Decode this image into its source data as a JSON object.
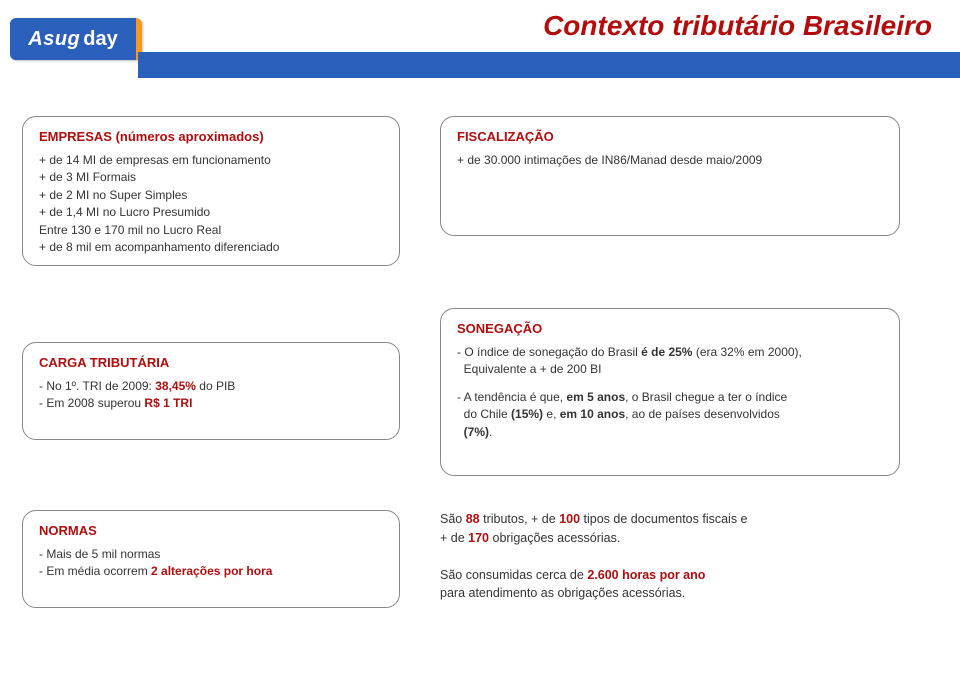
{
  "colors": {
    "brand_blue": "#2a5fbc",
    "brand_orange": "#f29a24",
    "title_red": "#b30c0c",
    "accent_red": "#b30c0c",
    "border_gray": "#888888",
    "text_black": "#333333",
    "bg_white": "#ffffff"
  },
  "logo": {
    "part1": "Asug",
    "part2": "day"
  },
  "page_title": "Contexto tributário Brasileiro",
  "cards": {
    "empresas": {
      "title": "EMPRESAS (números aproximados)",
      "lines": [
        "+ de 14 MI de empresas em funcionamento",
        "+ de 3 MI Formais",
        "+ de 2 MI no Super Simples",
        "+ de 1,4 MI no Lucro Presumido",
        "Entre 130 e 170 mil no Lucro Real",
        "+ de 8 mil em acompanhamento diferenciado"
      ]
    },
    "fiscalizacao": {
      "title": "FISCALIZAÇÃO",
      "lines": [
        "+ de 30.000 intimações de IN86/Manad desde maio/2009"
      ]
    },
    "carga": {
      "title": "CARGA TRIBUTÁRIA",
      "lines": [
        {
          "pre": "- No 1º. TRI de 2009: ",
          "hl": "38,45%",
          "post": " do PIB"
        },
        {
          "pre": "- Em 2008 superou ",
          "hl": "R$ 1 TRI",
          "post": ""
        }
      ]
    },
    "sonegacao": {
      "title": "SONEGAÇÃO",
      "lines": [
        "- O índice de sonegação do Brasil é de 25% (era 32% em 2000),\n  Equivalente a + de 200 BI",
        "- A tendência é que, em 5 anos, o Brasil chegue a ter o índice\n  do Chile (15%) e, em 10 anos, ao de países desenvolvidos\n  (7%)."
      ],
      "bold_tokens": [
        "é de 25%",
        "em 5 anos",
        "(15%)",
        "em 10 anos",
        "(7%)"
      ]
    },
    "normas": {
      "title": "NORMAS",
      "lines": [
        {
          "pre": "- Mais de 5 mil normas",
          "hl": "",
          "post": ""
        },
        {
          "pre": "- Em média ocorrem ",
          "hl": "2 alterações por hora",
          "post": ""
        }
      ]
    },
    "facts": {
      "line1": {
        "pre": "São ",
        "h1": "88",
        "mid1": " tributos, + de ",
        "h2": "100",
        "mid2": " tipos de documentos fiscais e\n+ de ",
        "h3": "170",
        "post": " obrigações acessórias."
      },
      "line2": {
        "pre": "São consumidas cerca de ",
        "hl": "2.600 horas por ano",
        "post": "\npara atendimento as obrigações acessórias."
      }
    }
  }
}
